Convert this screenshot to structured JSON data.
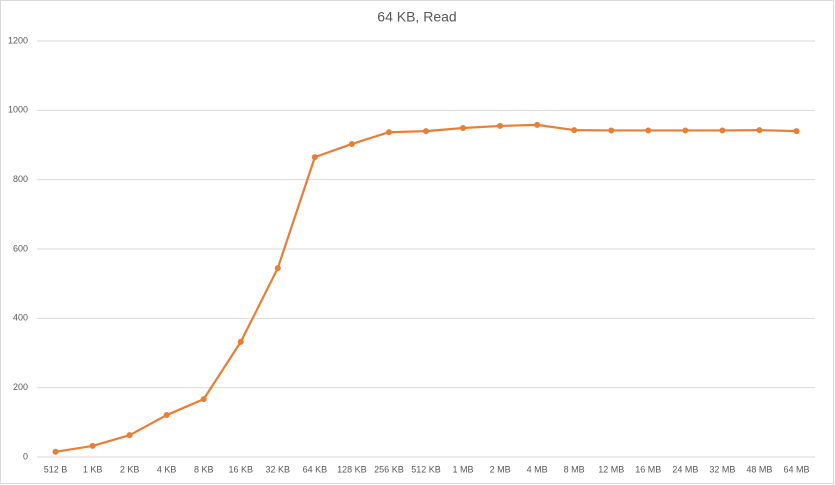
{
  "chart_data": {
    "type": "line",
    "title": "64 KB, Read",
    "categories": [
      "512 B",
      "1 KB",
      "2 KB",
      "4 KB",
      "8 KB",
      "16 KB",
      "32 KB",
      "64 KB",
      "128 KB",
      "256 KB",
      "512 KB",
      "1 MB",
      "2 MB",
      "4 MB",
      "8 MB",
      "12 MB",
      "16 MB",
      "24 MB",
      "32 MB",
      "48 MB",
      "64 MB"
    ],
    "series": [
      {
        "name": "Read",
        "color": "#ed7d31",
        "values": [
          15,
          32,
          63,
          121,
          167,
          332,
          545,
          865,
          903,
          937,
          940,
          949,
          955,
          958,
          943,
          942,
          942,
          942,
          942,
          943,
          940
        ]
      }
    ],
    "ylim": [
      0,
      1200
    ],
    "yticks": [
      0,
      200,
      400,
      600,
      800,
      1000,
      1200
    ],
    "grid": true
  }
}
